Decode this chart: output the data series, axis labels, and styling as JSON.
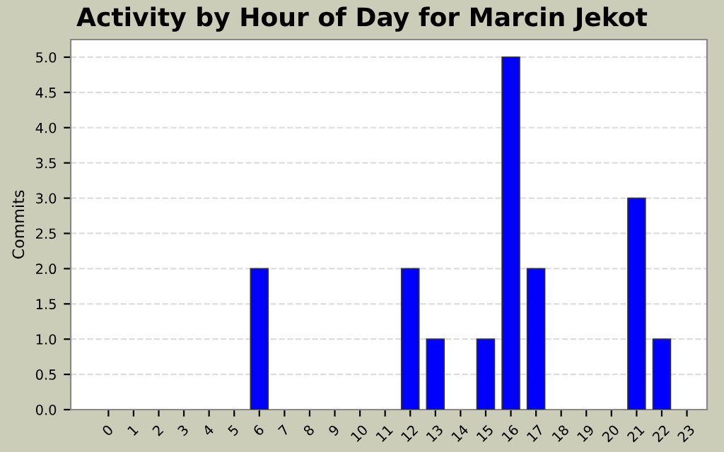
{
  "chart_data": {
    "type": "bar",
    "title": "Activity by Hour of Day for Marcin Jekot",
    "ylabel": "Commits",
    "categories": [
      "0",
      "1",
      "2",
      "3",
      "4",
      "5",
      "6",
      "7",
      "8",
      "9",
      "10",
      "11",
      "12",
      "13",
      "14",
      "15",
      "16",
      "17",
      "18",
      "19",
      "20",
      "21",
      "22",
      "23"
    ],
    "values": [
      0,
      0,
      0,
      0,
      0,
      0,
      2,
      0,
      0,
      0,
      0,
      0,
      2,
      1,
      0,
      1,
      5,
      2,
      0,
      0,
      0,
      3,
      1,
      0
    ],
    "color": "#0000ff",
    "ylim": [
      0,
      5.25
    ],
    "yticks": [
      {
        "value": 0,
        "label": "0.0"
      },
      {
        "value": 0.5,
        "label": "0.5"
      },
      {
        "value": 1,
        "label": "1.0"
      },
      {
        "value": 1.5,
        "label": "1.5"
      },
      {
        "value": 2,
        "label": "2.0"
      },
      {
        "value": 2.5,
        "label": "2.5"
      },
      {
        "value": 3,
        "label": "3.0"
      },
      {
        "value": 3.5,
        "label": "3.5"
      },
      {
        "value": 4,
        "label": "4.0"
      },
      {
        "value": 4.5,
        "label": "4.5"
      },
      {
        "value": 5,
        "label": "5.0"
      }
    ],
    "grid": "y"
  }
}
